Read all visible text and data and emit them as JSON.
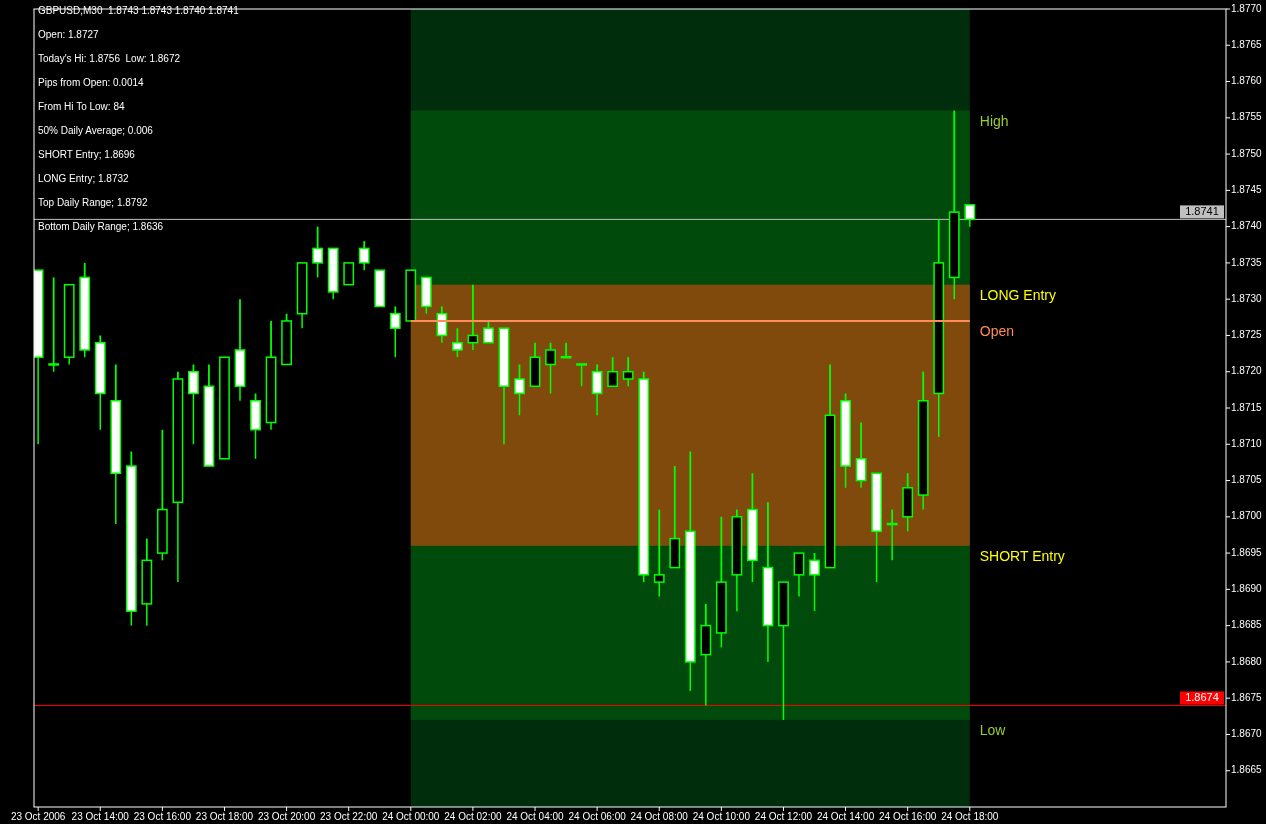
{
  "chart_data": {
    "type": "candlestick",
    "title": "GBPUSD,M30  1.8743 1.8743 1.8740 1.8741",
    "annotations": [
      "Open: 1.8727",
      "Today's Hi: 1.8756  Low: 1.8672",
      "Pips from Open: 0.0014",
      "From Hi To Low: 84",
      "50% Daily Average; 0.006",
      "SHORT Entry; 1.8696",
      "LONG Entry; 1.8732",
      "Top Daily Range; 1.8792",
      "Bottom Daily Range; 1.8636",
      {
        "text": "High",
        "x": "2006-10-24T18:00",
        "y": 1.8756
      },
      {
        "text": "LONG Entry",
        "x": "2006-10-24T18:00",
        "y": 1.8732
      },
      {
        "text": "SHORT Entry",
        "x": "2006-10-24T18:00",
        "y": 1.8696
      },
      {
        "text": "Low",
        "x": "2006-10-24T18:00",
        "y": 1.8672
      }
    ],
    "x": [
      "2006-10-23T12:00",
      "2006-10-23T12:30",
      "2006-10-23T13:00",
      "2006-10-23T13:30",
      "2006-10-23T14:00",
      "2006-10-23T14:30",
      "2006-10-23T15:00",
      "2006-10-23T15:30",
      "2006-10-23T16:00",
      "2006-10-23T16:30",
      "2006-10-23T17:00",
      "2006-10-23T17:30",
      "2006-10-23T18:00",
      "2006-10-23T18:30",
      "2006-10-23T19:00",
      "2006-10-23T19:30",
      "2006-10-23T20:00",
      "2006-10-23T20:30",
      "2006-10-23T21:00",
      "2006-10-23T21:30",
      "2006-10-23T22:00",
      "2006-10-23T22:30",
      "2006-10-23T23:00",
      "2006-10-23T23:30",
      "2006-10-24T00:00",
      "2006-10-24T00:30",
      "2006-10-24T01:00",
      "2006-10-24T01:30",
      "2006-10-24T02:00",
      "2006-10-24T02:30",
      "2006-10-24T03:00",
      "2006-10-24T03:30",
      "2006-10-24T04:00",
      "2006-10-24T04:30",
      "2006-10-24T05:00",
      "2006-10-24T05:30",
      "2006-10-24T06:00",
      "2006-10-24T06:30",
      "2006-10-24T07:00",
      "2006-10-24T07:30",
      "2006-10-24T08:00",
      "2006-10-24T08:30",
      "2006-10-24T09:00",
      "2006-10-24T09:30",
      "2006-10-24T10:00",
      "2006-10-24T10:30",
      "2006-10-24T11:00",
      "2006-10-24T11:30",
      "2006-10-24T12:00",
      "2006-10-24T12:30",
      "2006-10-24T13:00",
      "2006-10-24T13:30",
      "2006-10-24T14:00",
      "2006-10-24T14:30",
      "2006-10-24T15:00",
      "2006-10-24T15:30",
      "2006-10-24T16:00",
      "2006-10-24T16:30",
      "2006-10-24T17:00",
      "2006-10-24T17:30",
      "2006-10-24T18:00"
    ],
    "ohlc": [
      [
        1.8734,
        1.8734,
        1.871,
        1.8722
      ],
      [
        1.8721,
        1.8733,
        1.872,
        1.8721
      ],
      [
        1.8722,
        1.8732,
        1.8721,
        1.8732
      ],
      [
        1.8733,
        1.8735,
        1.8722,
        1.8723
      ],
      [
        1.8724,
        1.8725,
        1.8712,
        1.8717
      ],
      [
        1.8716,
        1.8721,
        1.8699,
        1.8706
      ],
      [
        1.8707,
        1.8709,
        1.8685,
        1.8687
      ],
      [
        1.8688,
        1.8697,
        1.8685,
        1.8694
      ],
      [
        1.8695,
        1.8712,
        1.8694,
        1.8701
      ],
      [
        1.8702,
        1.872,
        1.8691,
        1.8719
      ],
      [
        1.872,
        1.8721,
        1.871,
        1.8717
      ],
      [
        1.8718,
        1.8721,
        1.8707,
        1.8707
      ],
      [
        1.8708,
        1.8722,
        1.8708,
        1.8722
      ],
      [
        1.8723,
        1.873,
        1.8716,
        1.8718
      ],
      [
        1.8716,
        1.8717,
        1.8708,
        1.8712
      ],
      [
        1.8713,
        1.8727,
        1.8712,
        1.8722
      ],
      [
        1.8721,
        1.8728,
        1.8721,
        1.8727
      ],
      [
        1.8728,
        1.8735,
        1.8726,
        1.8735
      ],
      [
        1.8737,
        1.874,
        1.8733,
        1.8735
      ],
      [
        1.8737,
        1.8737,
        1.873,
        1.8731
      ],
      [
        1.8732,
        1.8735,
        1.8732,
        1.8735
      ],
      [
        1.8737,
        1.8738,
        1.8734,
        1.8735
      ],
      [
        1.8734,
        1.8734,
        1.8729,
        1.8729
      ],
      [
        1.8728,
        1.8729,
        1.8722,
        1.8726
      ],
      [
        1.8727,
        1.8734,
        1.8727,
        1.8734
      ],
      [
        1.8733,
        1.8733,
        1.8728,
        1.8729
      ],
      [
        1.8728,
        1.8729,
        1.8724,
        1.8725
      ],
      [
        1.8724,
        1.8726,
        1.8722,
        1.8723
      ],
      [
        1.8724,
        1.8732,
        1.8723,
        1.8725
      ],
      [
        1.8726,
        1.8727,
        1.8724,
        1.8724
      ],
      [
        1.8726,
        1.8726,
        1.871,
        1.8718
      ],
      [
        1.8719,
        1.8721,
        1.8714,
        1.8717
      ],
      [
        1.8718,
        1.8724,
        1.8718,
        1.8722
      ],
      [
        1.8721,
        1.8724,
        1.8717,
        1.8723
      ],
      [
        1.8722,
        1.8724,
        1.8722,
        1.8722
      ],
      [
        1.8721,
        1.8721,
        1.8718,
        1.8721
      ],
      [
        1.872,
        1.8721,
        1.8714,
        1.8717
      ],
      [
        1.8718,
        1.8722,
        1.8718,
        1.872
      ],
      [
        1.8719,
        1.8722,
        1.8718,
        1.872
      ],
      [
        1.8719,
        1.872,
        1.8691,
        1.8692
      ],
      [
        1.8691,
        1.8701,
        1.8689,
        1.8692
      ],
      [
        1.8693,
        1.8707,
        1.8693,
        1.8697
      ],
      [
        1.8698,
        1.8709,
        1.8676,
        1.868
      ],
      [
        1.8681,
        1.8688,
        1.8674,
        1.8685
      ],
      [
        1.8684,
        1.87,
        1.8682,
        1.8691
      ],
      [
        1.8692,
        1.8701,
        1.8687,
        1.87
      ],
      [
        1.8701,
        1.8706,
        1.8691,
        1.8694
      ],
      [
        1.8693,
        1.8702,
        1.868,
        1.8685
      ],
      [
        1.8685,
        1.8691,
        1.8672,
        1.8691
      ],
      [
        1.8692,
        1.8695,
        1.8689,
        1.8695
      ],
      [
        1.8694,
        1.8695,
        1.8687,
        1.8692
      ],
      [
        1.8693,
        1.8721,
        1.8693,
        1.8714
      ],
      [
        1.8716,
        1.8717,
        1.8704,
        1.8707
      ],
      [
        1.8708,
        1.8713,
        1.8704,
        1.8705
      ],
      [
        1.8706,
        1.8706,
        1.8691,
        1.8698
      ],
      [
        1.8699,
        1.8701,
        1.8694,
        1.8699
      ],
      [
        1.87,
        1.8706,
        1.8698,
        1.8704
      ],
      [
        1.8703,
        1.872,
        1.8701,
        1.8716
      ],
      [
        1.8717,
        1.8741,
        1.8711,
        1.8735
      ],
      [
        1.8733,
        1.8756,
        1.873,
        1.8742
      ],
      [
        1.8743,
        1.8743,
        1.874,
        1.8741
      ]
    ],
    "color": "#00ff00",
    "colors": [
      "#ffffff",
      "#ffffff",
      "#000000",
      "#ffffff",
      "#ffffff",
      "#ffffff",
      "#ffffff",
      "#000000",
      "#000000",
      "#000000",
      "#ffffff",
      "#ffffff",
      "#000000",
      "#ffffff",
      "#ffffff",
      "#000000",
      "#000000",
      "#000000",
      "#ffffff",
      "#ffffff",
      "#000000",
      "#ffffff",
      "#ffffff",
      "#ffffff",
      "#000000",
      "#ffffff",
      "#ffffff",
      "#ffffff",
      "#000000",
      "#ffffff",
      "#ffffff",
      "#ffffff",
      "#000000",
      "#000000",
      "#ffffff",
      "#ffffff",
      "#ffffff",
      "#000000",
      "#000000",
      "#ffffff",
      "#000000",
      "#000000",
      "#ffffff",
      "#000000",
      "#000000",
      "#000000",
      "#ffffff",
      "#ffffff",
      "#000000",
      "#000000",
      "#ffffff",
      "#000000",
      "#ffffff",
      "#ffffff",
      "#ffffff",
      "#ffffff",
      "#000000",
      "#000000",
      "#000000",
      "#000000",
      "#ffffff"
    ],
    "series": [
      {
        "type": "line",
        "name": "Open",
        "color": "#ff8c5a",
        "x": [
          "2006-10-24T00:00",
          "2006-10-24T18:00"
        ],
        "values": [
          1.8727,
          1.8727
        ]
      }
    ],
    "xlim": [
      "2006-10-23T11:52",
      "2006-10-25T02:15"
    ],
    "ylim": [
      1.866,
      1.877
    ],
    "xticks": [
      {
        "value": "2006-10-23T12:00",
        "label": "23 Oct 2006"
      },
      {
        "value": "2006-10-23T14:00",
        "label": "23 Oct 14:00"
      },
      {
        "value": "2006-10-23T16:00",
        "label": "23 Oct 16:00"
      },
      {
        "value": "2006-10-23T18:00",
        "label": "23 Oct 18:00"
      },
      {
        "value": "2006-10-23T20:00",
        "label": "23 Oct 20:00"
      },
      {
        "value": "2006-10-23T22:00",
        "label": "23 Oct 22:00"
      },
      {
        "value": "2006-10-24T00:00",
        "label": "24 Oct 00:00"
      },
      {
        "value": "2006-10-24T02:00",
        "label": "24 Oct 02:00"
      },
      {
        "value": "2006-10-24T04:00",
        "label": "24 Oct 04:00"
      },
      {
        "value": "2006-10-24T06:00",
        "label": "24 Oct 06:00"
      },
      {
        "value": "2006-10-24T08:00",
        "label": "24 Oct 08:00"
      },
      {
        "value": "2006-10-24T10:00",
        "label": "24 Oct 10:00"
      },
      {
        "value": "2006-10-24T12:00",
        "label": "24 Oct 12:00"
      },
      {
        "value": "2006-10-24T14:00",
        "label": "24 Oct 14:00"
      },
      {
        "value": "2006-10-24T16:00",
        "label": "24 Oct 16:00"
      },
      {
        "value": "2006-10-24T18:00",
        "label": "24 Oct 18:00"
      }
    ],
    "yticks": [
      {
        "value": 1.8665,
        "label": "1.8665"
      },
      {
        "value": 1.867,
        "label": "1.8670"
      },
      {
        "value": 1.8675,
        "label": "1.8675"
      },
      {
        "value": 1.868,
        "label": "1.8680"
      },
      {
        "value": 1.8685,
        "label": "1.8685"
      },
      {
        "value": 1.869,
        "label": "1.8690"
      },
      {
        "value": 1.8695,
        "label": "1.8695"
      },
      {
        "value": 1.87,
        "label": "1.8700"
      },
      {
        "value": 1.8705,
        "label": "1.8705"
      },
      {
        "value": 1.871,
        "label": "1.8710"
      },
      {
        "value": 1.8715,
        "label": "1.8715"
      },
      {
        "value": 1.872,
        "label": "1.8720"
      },
      {
        "value": 1.8725,
        "label": "1.8725"
      },
      {
        "value": 1.873,
        "label": "1.8730"
      },
      {
        "value": 1.8735,
        "label": "1.8735"
      },
      {
        "value": 1.874,
        "label": "1.8740"
      },
      {
        "value": 1.8745,
        "label": "1.8745"
      },
      {
        "value": 1.875,
        "label": "1.8750"
      },
      {
        "value": 1.8755,
        "label": "1.8755"
      },
      {
        "value": 1.876,
        "label": "1.8760"
      },
      {
        "value": 1.8765,
        "label": "1.8765"
      },
      {
        "value": 1.877,
        "label": "1.8770"
      }
    ],
    "ref_lines": [
      {
        "axis": "y",
        "value": 1.8741,
        "label": "1.8741",
        "color": "#c0c0c0"
      },
      {
        "axis": "y",
        "value": 1.8674,
        "label": "1.8674",
        "color": "#ff0000"
      }
    ],
    "bands": [
      {
        "axis": "x",
        "from": "2006-10-24T00:00",
        "to": "2006-10-24T18:00",
        "color": "#002e0c"
      },
      {
        "axis": "y",
        "from": 1.8672,
        "to": 1.8756,
        "color": "#004a0b"
      },
      {
        "axis": "y",
        "from": 1.8696,
        "to": 1.8732,
        "color": "#804a0c"
      }
    ]
  }
}
